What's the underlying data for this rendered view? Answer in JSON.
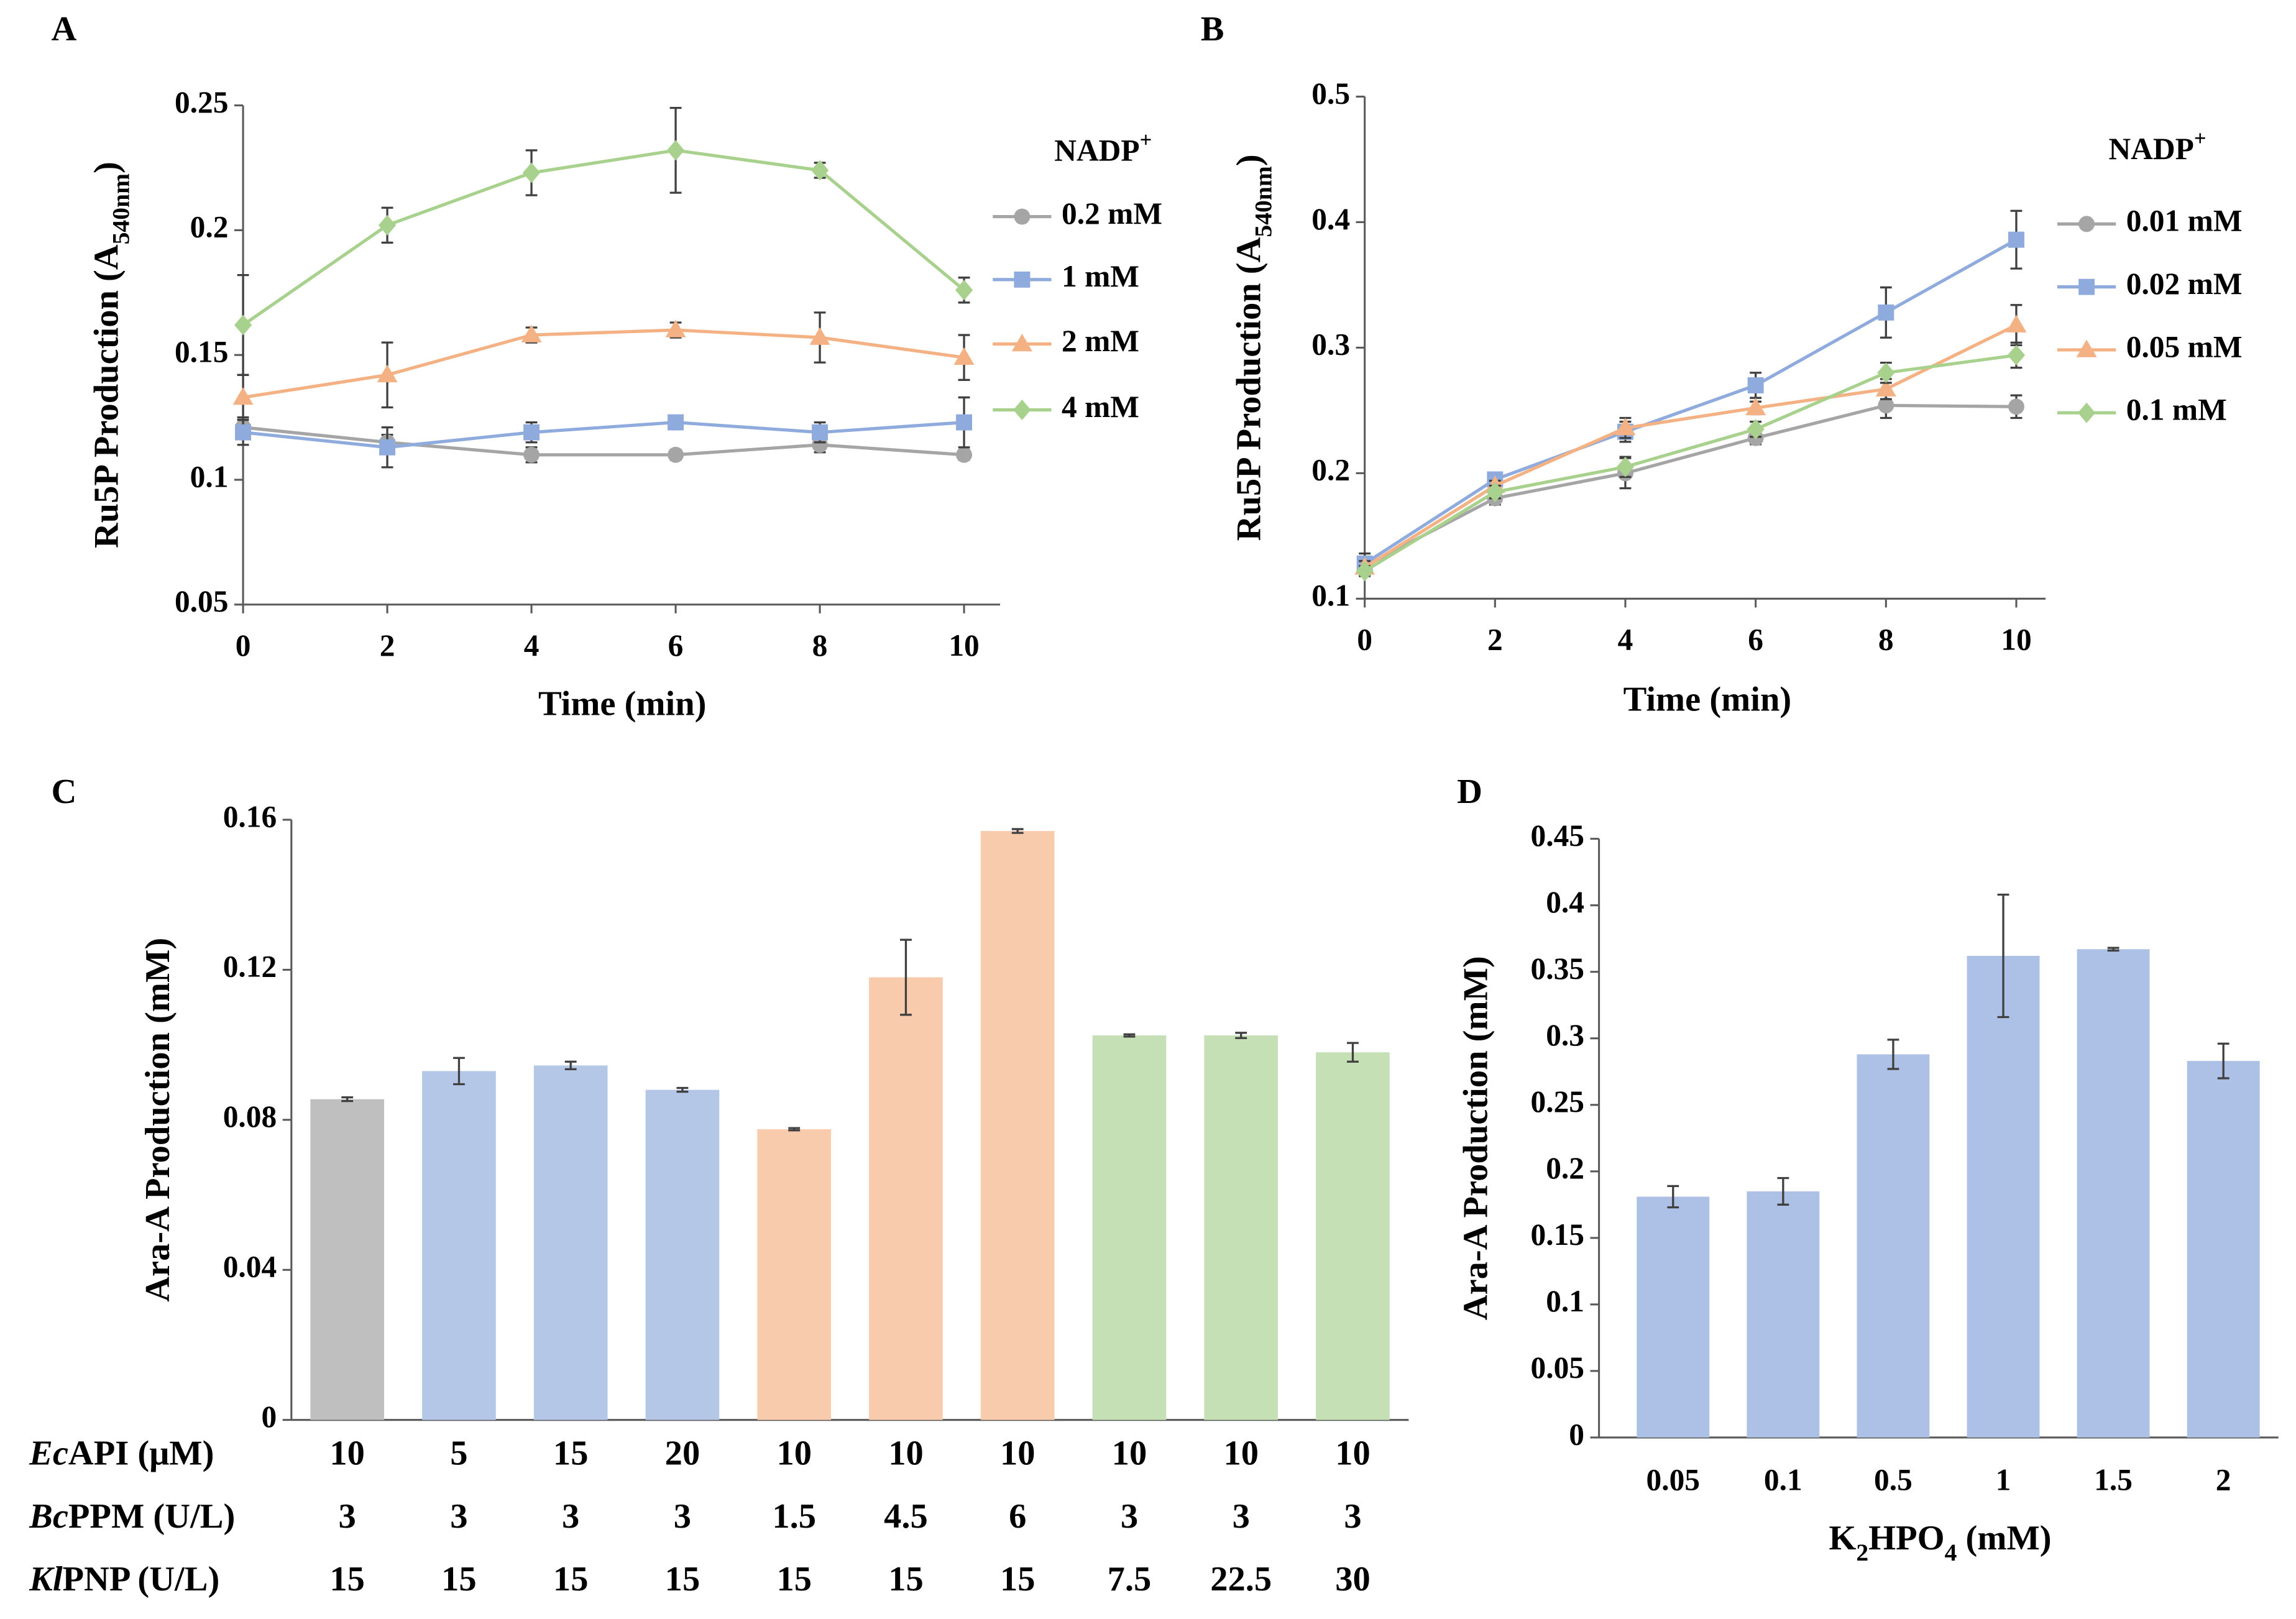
{
  "chart_data": [
    {
      "type": "line",
      "panel": "A",
      "ylabel": [
        {
          "text": "Ru5P Production (A"
        },
        {
          "text": "540nm",
          "sub": true
        },
        {
          "text": ")"
        }
      ],
      "xlabel": [
        {
          "text": "Time (min)"
        }
      ],
      "legend_title": [
        {
          "text": "NADP"
        },
        {
          "text": "+",
          "sup": true
        }
      ],
      "x": [
        0,
        2,
        4,
        6,
        8,
        10
      ],
      "xlim": [
        0,
        10.5
      ],
      "xticks": [
        0,
        2,
        4,
        6,
        8,
        10
      ],
      "ylim": [
        0.05,
        0.25
      ],
      "yticks": [
        0.05,
        0.1,
        0.15,
        0.2,
        0.25
      ],
      "series": [
        {
          "name": "0.2 mM",
          "color": "#a5a5a5",
          "marker": "circle",
          "values": [
            0.121,
            0.115,
            0.11,
            0.11,
            0.114,
            0.11
          ],
          "errors": [
            0.004,
            0.003,
            0.003,
            0.002,
            0.003,
            0.002
          ]
        },
        {
          "name": "1 mM",
          "color": "#8faadc",
          "marker": "square",
          "values": [
            0.119,
            0.113,
            0.119,
            0.123,
            0.119,
            0.123
          ],
          "errors": [
            0.005,
            0.008,
            0.004,
            0.002,
            0.004,
            0.01
          ]
        },
        {
          "name": "2 mM",
          "color": "#f4b183",
          "marker": "triangle",
          "values": [
            0.133,
            0.142,
            0.158,
            0.16,
            0.157,
            0.149
          ],
          "errors": [
            0.009,
            0.013,
            0.003,
            0.003,
            0.01,
            0.009
          ]
        },
        {
          "name": "4 mM",
          "color": "#a9d18e",
          "marker": "diamond",
          "values": [
            0.162,
            0.202,
            0.223,
            0.232,
            0.224,
            0.176
          ],
          "errors": [
            0.02,
            0.007,
            0.009,
            0.017,
            0.003,
            0.005
          ]
        }
      ]
    },
    {
      "type": "line",
      "panel": "B",
      "ylabel": [
        {
          "text": "Ru5P Production (A"
        },
        {
          "text": "540nm",
          "sub": true
        },
        {
          "text": ")"
        }
      ],
      "xlabel": [
        {
          "text": "Time (min)"
        }
      ],
      "legend_title": [
        {
          "text": "NADP"
        },
        {
          "text": "+",
          "sup": true
        }
      ],
      "x": [
        0,
        2,
        4,
        6,
        8,
        10
      ],
      "xlim": [
        0,
        10.45
      ],
      "xticks": [
        0,
        2,
        4,
        6,
        8,
        10
      ],
      "ylim": [
        0.1,
        0.5
      ],
      "yticks": [
        0.1,
        0.2,
        0.3,
        0.4,
        0.5
      ],
      "series": [
        {
          "name": "0.01 mM",
          "color": "#a5a5a5",
          "marker": "circle",
          "values": [
            0.126,
            0.18,
            0.2,
            0.228,
            0.254,
            0.253
          ],
          "errors": [
            0.006,
            0.005,
            0.012,
            0.005,
            0.01,
            0.009
          ]
        },
        {
          "name": "0.02 mM",
          "color": "#8faadc",
          "marker": "square",
          "values": [
            0.128,
            0.195,
            0.233,
            0.27,
            0.328,
            0.386
          ],
          "errors": [
            0.008,
            0.004,
            0.008,
            0.01,
            0.02,
            0.023
          ]
        },
        {
          "name": "0.05 mM",
          "color": "#f4b183",
          "marker": "triangle",
          "values": [
            0.125,
            0.19,
            0.236,
            0.252,
            0.267,
            0.318
          ],
          "errors": [
            0.005,
            0.004,
            0.008,
            0.005,
            0.008,
            0.016
          ]
        },
        {
          "name": "0.1 mM",
          "color": "#a9d18e",
          "marker": "diamond",
          "values": [
            0.122,
            0.185,
            0.205,
            0.235,
            0.28,
            0.294
          ],
          "errors": [
            0.004,
            0.005,
            0.008,
            0.006,
            0.008,
            0.01
          ]
        }
      ]
    },
    {
      "type": "bar",
      "panel": "C",
      "ylabel": [
        {
          "text": "Ara-A  Production (mM)"
        }
      ],
      "ylim": [
        0,
        0.16
      ],
      "yticks": [
        0,
        0.04,
        0.08,
        0.12,
        0.16
      ],
      "values": [
        0.0855,
        0.093,
        0.0945,
        0.088,
        0.0775,
        0.118,
        0.157,
        0.1025,
        0.1025,
        0.098
      ],
      "errors": [
        0.0005,
        0.0035,
        0.001,
        0.0005,
        0.0003,
        0.01,
        0.0005,
        0.0003,
        0.0007,
        0.0025
      ],
      "colors": [
        "#bfbfbf",
        "#b4c7e7",
        "#b4c7e7",
        "#b4c7e7",
        "#f8cbad",
        "#f8cbad",
        "#f8cbad",
        "#c5e0b4",
        "#c5e0b4",
        "#c5e0b4"
      ],
      "parameters": [
        {
          "label": [
            {
              "text": "Ec",
              "italic": true
            },
            {
              "text": "API (μM)"
            }
          ],
          "values": [
            10,
            5,
            15,
            20,
            10,
            10,
            10,
            10,
            10,
            10
          ]
        },
        {
          "label": [
            {
              "text": "Bc",
              "italic": true
            },
            {
              "text": "PPM (U/L)"
            }
          ],
          "values": [
            3,
            3,
            3,
            3,
            1.5,
            4.5,
            6,
            3,
            3,
            3
          ]
        },
        {
          "label": [
            {
              "text": "Kl",
              "italic": true
            },
            {
              "text": "PNP (U/L)"
            }
          ],
          "values": [
            15,
            15,
            15,
            15,
            15,
            15,
            15,
            7.5,
            22.5,
            30
          ]
        }
      ]
    },
    {
      "type": "bar",
      "panel": "D",
      "ylabel": [
        {
          "text": "Ara-A  Production (mM)"
        }
      ],
      "xlabel": [
        {
          "text": "K"
        },
        {
          "text": "2",
          "sub": true
        },
        {
          "text": "HPO"
        },
        {
          "text": "4",
          "sub": true
        },
        {
          "text": " (mM)"
        }
      ],
      "categories": [
        "0.05",
        "0.1",
        "0.5",
        "1",
        "1.5",
        "2"
      ],
      "ylim": [
        0,
        0.45
      ],
      "yticks": [
        0,
        0.05,
        0.1,
        0.15,
        0.2,
        0.25,
        0.3,
        0.35,
        0.4,
        0.45
      ],
      "values": [
        0.181,
        0.185,
        0.288,
        0.362,
        0.367,
        0.283
      ],
      "errors": [
        0.008,
        0.01,
        0.011,
        0.046,
        0.001,
        0.013
      ],
      "color": "#adc0e6"
    }
  ]
}
